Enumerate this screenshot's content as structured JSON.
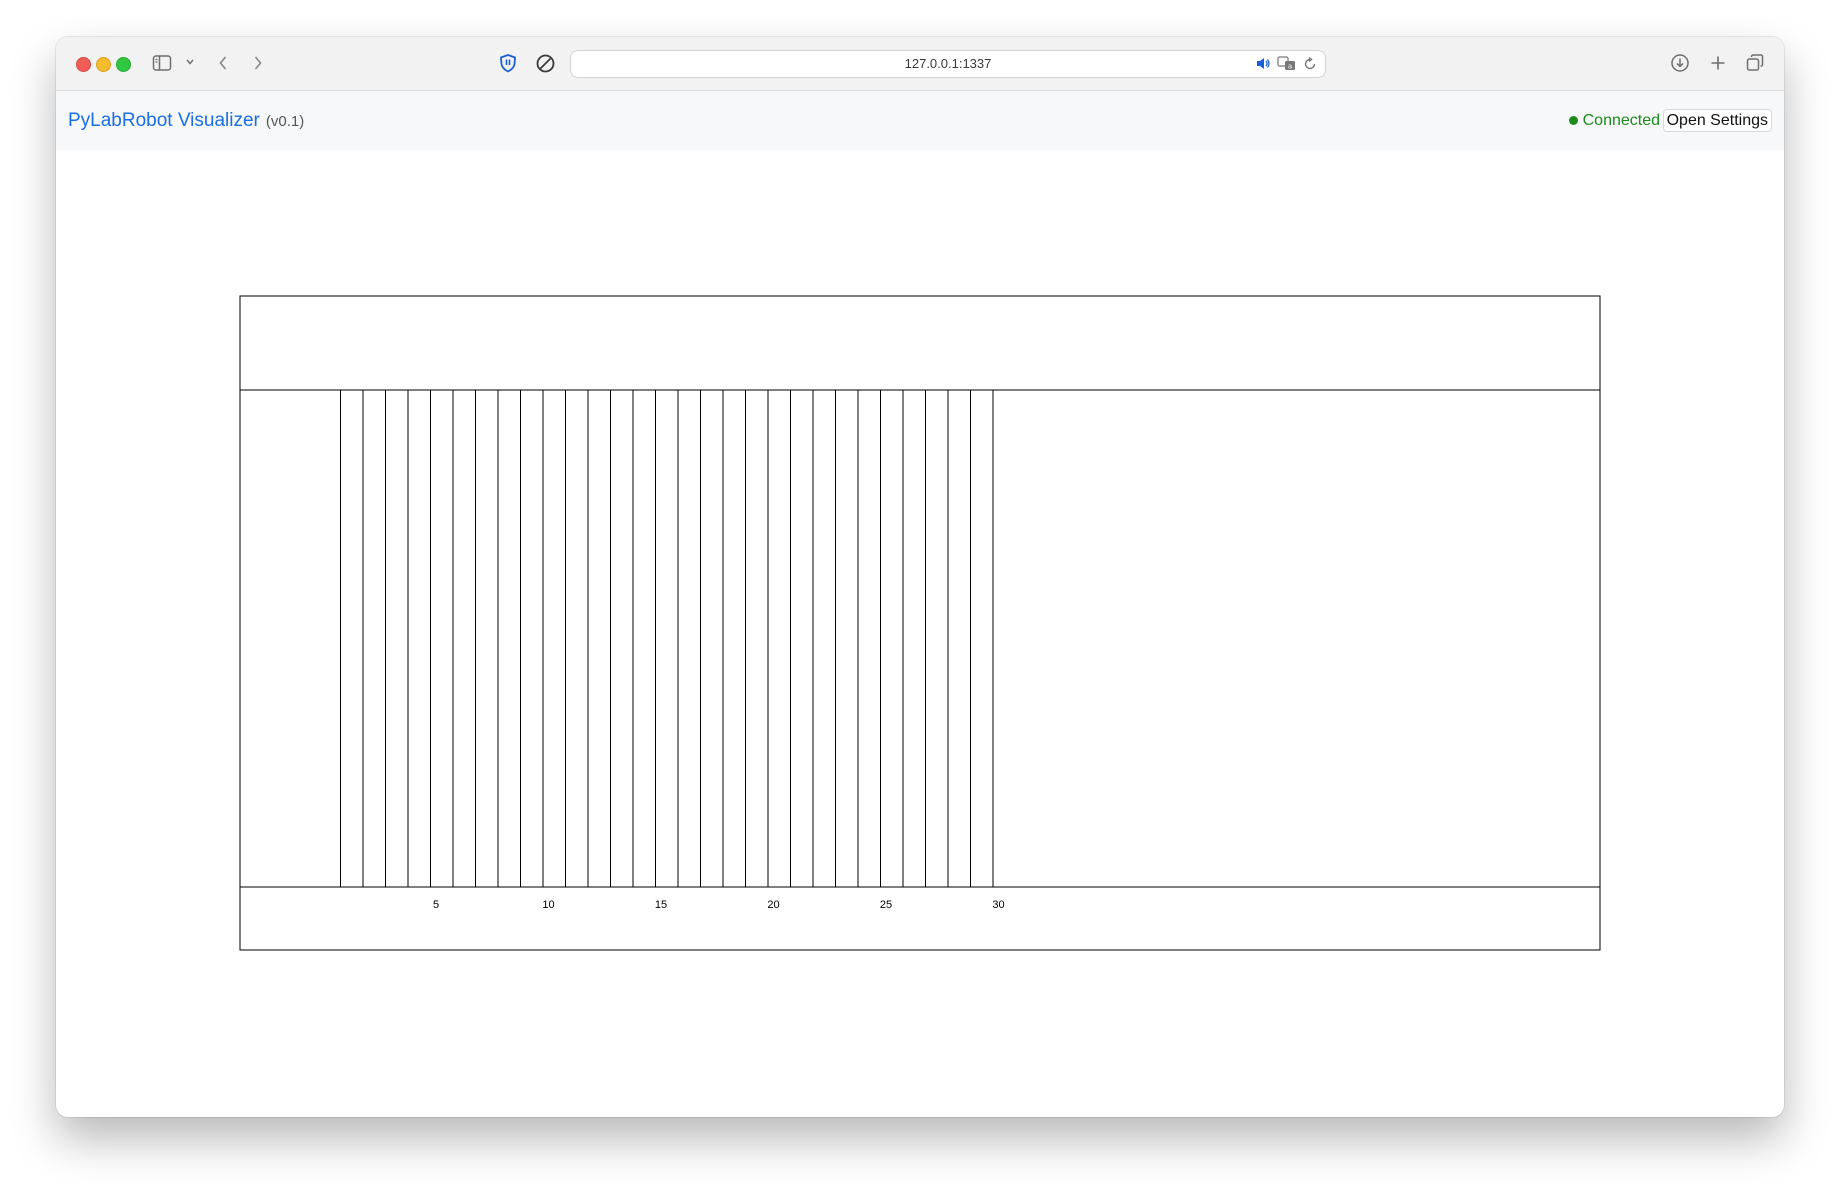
{
  "browser": {
    "url": "127.0.0.1:1337",
    "icons": [
      "sidebar-icon",
      "chevron-down-icon",
      "back-icon",
      "forward-icon",
      "shield-icon",
      "block-icon",
      "speaker-icon",
      "translate-icon",
      "reload-icon",
      "download-icon",
      "plus-icon",
      "tabs-icon"
    ]
  },
  "app": {
    "title": "PyLabRobot Visualizer",
    "version": "(v0.1)",
    "status": "Connected",
    "status_color": "#1c8b1c",
    "settings_label": "Open Settings",
    "brand_color": "#1a6ee6"
  },
  "deck": {
    "rail_count": 30,
    "rail_labels": [
      "5",
      "10",
      "15",
      "20",
      "25",
      "30"
    ]
  }
}
